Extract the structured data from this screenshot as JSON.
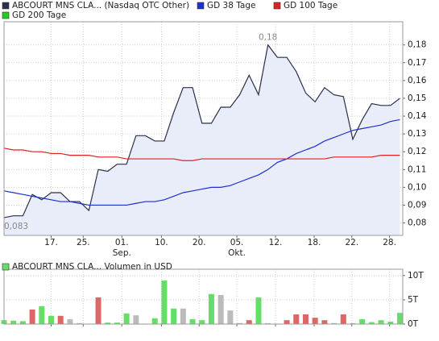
{
  "chart_data": [
    {
      "type": "line",
      "x": [
        0,
        1,
        2,
        3,
        4,
        5,
        6,
        7,
        8,
        9,
        10,
        11,
        12,
        13,
        14,
        15,
        16,
        17,
        18,
        19,
        20,
        21,
        22,
        23,
        24,
        25,
        26,
        27,
        28,
        29,
        30,
        31,
        32,
        33,
        34,
        35,
        36,
        37,
        38,
        39,
        40,
        41,
        42
      ],
      "series": [
        {
          "name": "ABCOURT MNS CLA... (Nasdaq OTC Other)",
          "color": "#2a2f4a",
          "fill": "#e9edfa",
          "values": [
            0.083,
            0.084,
            0.084,
            0.096,
            0.093,
            0.097,
            0.097,
            0.092,
            0.092,
            0.087,
            0.11,
            0.109,
            0.113,
            0.113,
            0.129,
            0.129,
            0.126,
            0.126,
            0.142,
            0.156,
            0.156,
            0.136,
            0.136,
            0.145,
            0.145,
            0.152,
            0.163,
            0.152,
            0.18,
            0.173,
            0.173,
            0.165,
            0.153,
            0.148,
            0.156,
            0.152,
            0.151,
            0.127,
            0.138,
            0.147,
            0.146,
            0.146,
            0.15
          ]
        },
        {
          "name": "GD 38 Tage",
          "color": "#1c2fd0",
          "values": [
            0.098,
            0.097,
            0.096,
            0.095,
            0.094,
            0.093,
            0.092,
            0.092,
            0.091,
            0.09,
            0.09,
            0.09,
            0.09,
            0.09,
            0.091,
            0.092,
            0.092,
            0.093,
            0.095,
            0.097,
            0.098,
            0.099,
            0.1,
            0.1,
            0.101,
            0.103,
            0.105,
            0.107,
            0.11,
            0.114,
            0.116,
            0.119,
            0.121,
            0.123,
            0.126,
            0.128,
            0.13,
            0.132,
            0.133,
            0.134,
            0.135,
            0.137,
            0.138
          ]
        },
        {
          "name": "GD 100 Tage",
          "color": "#dd2222",
          "values": [
            0.122,
            0.121,
            0.121,
            0.12,
            0.12,
            0.119,
            0.119,
            0.118,
            0.118,
            0.118,
            0.117,
            0.117,
            0.117,
            0.116,
            0.116,
            0.116,
            0.116,
            0.116,
            0.116,
            0.115,
            0.115,
            0.116,
            0.116,
            0.116,
            0.116,
            0.116,
            0.116,
            0.116,
            0.116,
            0.116,
            0.116,
            0.116,
            0.116,
            0.116,
            0.116,
            0.117,
            0.117,
            0.117,
            0.117,
            0.117,
            0.118,
            0.118,
            0.118
          ]
        },
        {
          "name": "GD 200 Tage",
          "color": "#22cc22"
        }
      ],
      "xlim": [
        0,
        42.3
      ],
      "xticks": [
        {
          "value": 5,
          "label": "17."
        },
        {
          "value": 8.4,
          "label": "25."
        },
        {
          "value": 12.5,
          "label": "01."
        },
        {
          "value": 16.7,
          "label": "10."
        },
        {
          "value": 20.7,
          "label": "20."
        },
        {
          "value": 24.7,
          "label": "05."
        },
        {
          "value": 28.8,
          "label": "12."
        },
        {
          "value": 32.9,
          "label": "18."
        },
        {
          "value": 36.9,
          "label": "22."
        },
        {
          "value": 40.9,
          "label": "28."
        }
      ],
      "month_labels": [
        {
          "value": 12.5,
          "label": "Sep."
        },
        {
          "value": 24.7,
          "label": "Okt."
        }
      ],
      "ylim": [
        0.073,
        0.193
      ],
      "yticks": [
        {
          "value": 0.08,
          "label": "0,08"
        },
        {
          "value": 0.09,
          "label": "0,09"
        },
        {
          "value": 0.1,
          "label": "0,10"
        },
        {
          "value": 0.11,
          "label": "0,11"
        },
        {
          "value": 0.12,
          "label": "0,12"
        },
        {
          "value": 0.13,
          "label": "0,13"
        },
        {
          "value": 0.14,
          "label": "0,14"
        },
        {
          "value": 0.15,
          "label": "0,15"
        },
        {
          "value": 0.16,
          "label": "0,16"
        },
        {
          "value": 0.17,
          "label": "0,17"
        },
        {
          "value": 0.18,
          "label": "0,18"
        }
      ],
      "annotations": [
        {
          "x": 28,
          "y": 0.18,
          "label": "0,18"
        },
        {
          "x": 0,
          "y": 0.083,
          "label": "0,083"
        }
      ],
      "grid": true
    },
    {
      "type": "bar",
      "x": [
        0,
        1,
        2,
        3,
        4,
        5,
        6,
        7,
        8,
        9,
        10,
        11,
        12,
        13,
        14,
        15,
        16,
        17,
        18,
        19,
        20,
        21,
        22,
        23,
        24,
        25,
        26,
        27,
        28,
        29,
        30,
        31,
        32,
        33,
        34,
        35,
        36,
        37,
        38,
        39,
        40,
        41,
        42
      ],
      "series": [
        {
          "name": "ABCOURT MNS CLA... Volumen in USD",
          "color": "#66dd66",
          "values": [
            0.8,
            0.7,
            0.6,
            3.0,
            3.7,
            1.7,
            1.7,
            1.0,
            0.2,
            0.1,
            5.5,
            0.3,
            0.3,
            2.2,
            1.8,
            0.1,
            1.2,
            9.0,
            3.2,
            3.2,
            1.0,
            0.8,
            6.2,
            6.0,
            2.8,
            0.2,
            0.8,
            5.5,
            0.2,
            0.1,
            0.8,
            2.0,
            2.0,
            1.3,
            0.8,
            0.2,
            2.0,
            0.2,
            1.0,
            0.4,
            0.8,
            0.5,
            2.3
          ],
          "colors": [
            "#66dd66",
            "#66dd66",
            "#66dd66",
            "#dd6666",
            "#66dd66",
            "#66dd66",
            "#dd6666",
            "#bbbbbb",
            "#bbbbbb",
            "#bbbbbb",
            "#dd6666",
            "#66dd66",
            "#66dd66",
            "#66dd66",
            "#bbbbbb",
            "#bbbbbb",
            "#66dd66",
            "#66dd66",
            "#66dd66",
            "#bbbbbb",
            "#66dd66",
            "#66dd66",
            "#66dd66",
            "#bbbbbb",
            "#bbbbbb",
            "#bbbbbb",
            "#dd6666",
            "#66dd66",
            "#bbbbbb",
            "#bbbbbb",
            "#dd6666",
            "#dd6666",
            "#dd6666",
            "#dd6666",
            "#dd6666",
            "#bbbbbb",
            "#dd6666",
            "#bbbbbb",
            "#66dd66",
            "#66dd66",
            "#66dd66",
            "#66dd66",
            "#66dd66"
          ]
        }
      ],
      "xlim": [
        0,
        42.3
      ],
      "xticks": [
        5,
        8.4,
        12.5,
        16.7,
        20.7,
        24.7,
        28.8,
        32.9,
        36.9,
        40.9
      ],
      "ylim": [
        0,
        11.3
      ],
      "yticks": [
        {
          "value": 0,
          "label": "0T"
        },
        {
          "value": 5,
          "label": "5T"
        },
        {
          "value": 10,
          "label": "10T"
        }
      ],
      "grid": true
    }
  ]
}
